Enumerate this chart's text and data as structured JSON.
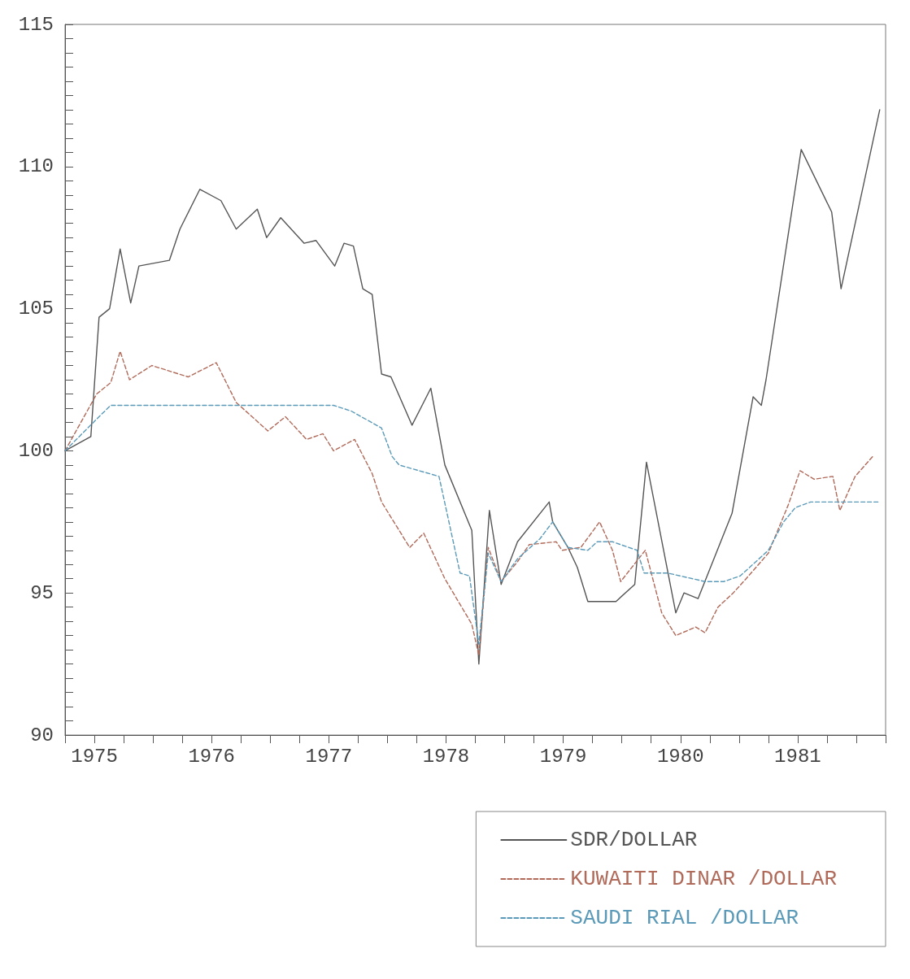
{
  "chart_data": {
    "type": "line",
    "legend": "bottom right",
    "xlim": [
      1974.75,
      1981.75
    ],
    "ylim": [
      90,
      115
    ],
    "xticks": [
      {
        "value": 1974.75,
        "label": null
      },
      1975,
      {
        "value": 1975.25,
        "label": null
      },
      {
        "value": 1975.5,
        "label": null
      },
      {
        "value": 1975.75,
        "label": null
      },
      1976,
      {
        "value": 1976.25,
        "label": null
      },
      {
        "value": 1976.5,
        "label": null
      },
      {
        "value": 1976.75,
        "label": null
      },
      1977,
      {
        "value": 1977.25,
        "label": null
      },
      {
        "value": 1977.5,
        "label": null
      },
      {
        "value": 1977.75,
        "label": null
      },
      1978,
      {
        "value": 1978.25,
        "label": null
      },
      {
        "value": 1978.5,
        "label": null
      },
      {
        "value": 1978.75,
        "label": null
      },
      1979,
      {
        "value": 1979.25,
        "label": null
      },
      {
        "value": 1979.5,
        "label": null
      },
      {
        "value": 1979.75,
        "label": null
      },
      1980,
      {
        "value": 1980.25,
        "label": null
      },
      {
        "value": 1980.5,
        "label": null
      },
      {
        "value": 1980.75,
        "label": null
      },
      1981,
      {
        "value": 1981.25,
        "label": null
      },
      {
        "value": 1981.5,
        "label": null
      },
      {
        "value": 1981.75,
        "label": null
      }
    ],
    "yticks": [
      90,
      {
        "value": 90.5,
        "label": null
      },
      {
        "value": 91,
        "label": null
      },
      {
        "value": 91.5,
        "label": null
      },
      {
        "value": 92,
        "label": null
      },
      {
        "value": 92.5,
        "label": null
      },
      {
        "value": 93,
        "label": null
      },
      {
        "value": 93.5,
        "label": null
      },
      {
        "value": 94,
        "label": null
      },
      {
        "value": 94.5,
        "label": null
      },
      95,
      {
        "value": 95.5,
        "label": null
      },
      {
        "value": 96,
        "label": null
      },
      {
        "value": 96.5,
        "label": null
      },
      {
        "value": 97,
        "label": null
      },
      {
        "value": 97.5,
        "label": null
      },
      {
        "value": 98,
        "label": null
      },
      {
        "value": 98.5,
        "label": null
      },
      {
        "value": 99,
        "label": null
      },
      {
        "value": 99.5,
        "label": null
      },
      100,
      {
        "value": 100.5,
        "label": null
      },
      {
        "value": 101,
        "label": null
      },
      {
        "value": 101.5,
        "label": null
      },
      {
        "value": 102,
        "label": null
      },
      {
        "value": 102.5,
        "label": null
      },
      {
        "value": 103,
        "label": null
      },
      {
        "value": 103.5,
        "label": null
      },
      {
        "value": 104,
        "label": null
      },
      {
        "value": 104.5,
        "label": null
      },
      105,
      {
        "value": 105.5,
        "label": null
      },
      {
        "value": 106,
        "label": null
      },
      {
        "value": 106.5,
        "label": null
      },
      {
        "value": 107,
        "label": null
      },
      {
        "value": 107.5,
        "label": null
      },
      {
        "value": 108,
        "label": null
      },
      {
        "value": 108.5,
        "label": null
      },
      {
        "value": 109,
        "label": null
      },
      {
        "value": 109.5,
        "label": null
      },
      110,
      {
        "value": 110.5,
        "label": null
      },
      {
        "value": 111,
        "label": null
      },
      {
        "value": 111.5,
        "label": null
      },
      {
        "value": 112,
        "label": null
      },
      {
        "value": 112.5,
        "label": null
      },
      {
        "value": 113,
        "label": null
      },
      {
        "value": 113.5,
        "label": null
      },
      {
        "value": 114,
        "label": null
      },
      {
        "value": 114.5,
        "label": null
      },
      115
    ],
    "series": [
      {
        "name": "SDR/DOLLAR",
        "color": "#555555",
        "line_style": "solid",
        "x": [
          1974.75,
          1974.97,
          1975.04,
          1975.13,
          1975.22,
          1975.31,
          1975.38,
          1975.64,
          1975.73,
          1975.9,
          1976.08,
          1976.21,
          1976.39,
          1976.47,
          1976.59,
          1976.79,
          1976.89,
          1977.05,
          1977.13,
          1977.21,
          1977.29,
          1977.37,
          1977.45,
          1977.53,
          1977.71,
          1977.87,
          1977.99,
          1978.22,
          1978.28,
          1978.37,
          1978.47,
          1978.61,
          1978.88,
          1978.91,
          1979.04,
          1979.12,
          1979.21,
          1979.45,
          1979.61,
          1979.71,
          1979.96,
          1980.03,
          1980.15,
          1980.44,
          1980.62,
          1980.69,
          1980.73,
          1981.03,
          1981.29,
          1981.37,
          1981.7
        ],
        "values": [
          100,
          100.5,
          104.7,
          105,
          107.1,
          105.2,
          106.5,
          106.7,
          107.8,
          109.2,
          108.8,
          107.8,
          108.5,
          107.5,
          108.2,
          107.3,
          107.4,
          106.5,
          107.3,
          107.2,
          105.7,
          105.5,
          102.7,
          102.6,
          100.9,
          102.2,
          99.5,
          97.2,
          92.5,
          97.9,
          95.3,
          96.8,
          98.2,
          97.5,
          96.6,
          95.9,
          94.7,
          94.7,
          95.3,
          99.6,
          94.3,
          95,
          94.8,
          97.8,
          101.9,
          101.6,
          102.5,
          110.6,
          108.4,
          105.7,
          112
        ]
      },
      {
        "name": "KUWAITI DINAR /DOLLAR",
        "color": "#b06a5a",
        "line_style": "dashed",
        "x": [
          1974.75,
          1975.02,
          1975.14,
          1975.22,
          1975.3,
          1975.49,
          1975.8,
          1976.04,
          1976.21,
          1976.48,
          1976.63,
          1976.81,
          1976.95,
          1977.04,
          1977.22,
          1977.37,
          1977.45,
          1977.69,
          1977.81,
          1977.99,
          1978.22,
          1978.28,
          1978.36,
          1978.47,
          1978.61,
          1978.71,
          1978.94,
          1978.99,
          1979.15,
          1979.31,
          1979.42,
          1979.49,
          1979.7,
          1979.84,
          1979.96,
          1980.13,
          1980.21,
          1980.32,
          1980.45,
          1980.56,
          1980.75,
          1980.92,
          1981.02,
          1981.14,
          1981.3,
          1981.36,
          1981.49,
          1981.64
        ],
        "values": [
          100,
          102,
          102.4,
          103.5,
          102.5,
          103,
          102.6,
          103.1,
          101.7,
          100.7,
          101.2,
          100.4,
          100.6,
          100,
          100.4,
          99.2,
          98.2,
          96.6,
          97.1,
          95.5,
          93.9,
          92.8,
          96.6,
          95.4,
          96.1,
          96.7,
          96.8,
          96.5,
          96.6,
          97.5,
          96.5,
          95.4,
          96.5,
          94.3,
          93.5,
          93.8,
          93.6,
          94.5,
          95,
          95.5,
          96.4,
          98.1,
          99.3,
          99,
          99.1,
          97.9,
          99.1,
          99.8
        ]
      },
      {
        "name": "SAUDI RIAL /DOLLAR",
        "color": "#5a9ab8",
        "line_style": "dashed",
        "x": [
          1974.75,
          1975.04,
          1975.14,
          1977.04,
          1977.19,
          1977.45,
          1977.54,
          1977.6,
          1977.94,
          1978.12,
          1978.2,
          1978.28,
          1978.36,
          1978.47,
          1978.61,
          1978.8,
          1978.91,
          1979.04,
          1979.21,
          1979.29,
          1979.42,
          1979.63,
          1979.69,
          1979.89,
          1980.21,
          1980.37,
          1980.51,
          1980.59,
          1980.75,
          1980.88,
          1980.98,
          1981.11,
          1981.7
        ],
        "values": [
          100,
          101.2,
          101.6,
          101.6,
          101.4,
          100.8,
          99.8,
          99.5,
          99.1,
          95.7,
          95.6,
          93.2,
          96.4,
          95.4,
          96.2,
          96.9,
          97.5,
          96.6,
          96.5,
          96.8,
          96.8,
          96.5,
          95.7,
          95.7,
          95.4,
          95.4,
          95.6,
          95.9,
          96.5,
          97.5,
          98,
          98.2,
          98.2
        ]
      }
    ]
  }
}
